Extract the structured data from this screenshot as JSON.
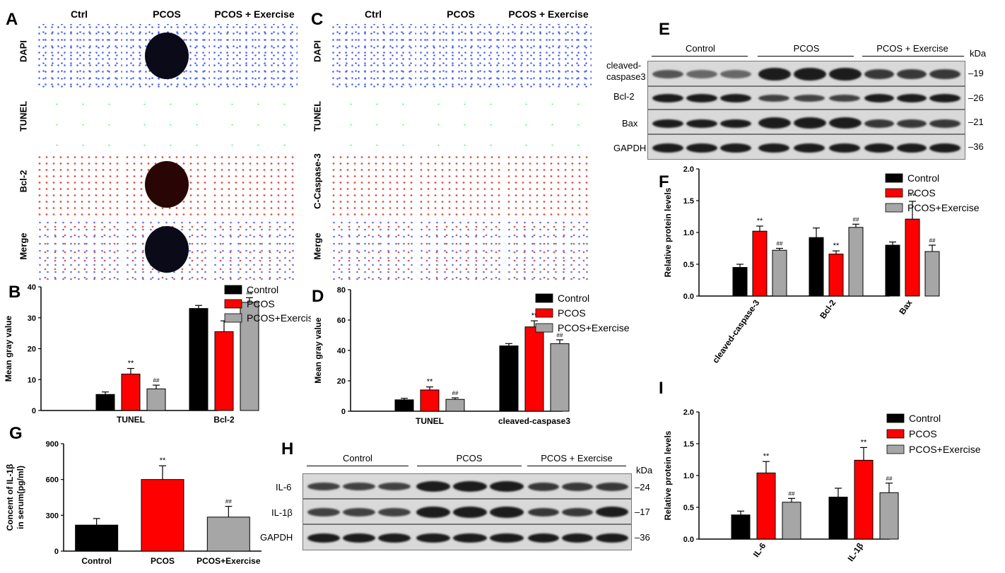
{
  "panels": {
    "A": "A",
    "B": "B",
    "C": "C",
    "D": "D",
    "E": "E",
    "F": "F",
    "G": "G",
    "H": "H",
    "I": "I"
  },
  "panel_A": {
    "columns": [
      "Ctrl",
      "PCOS",
      "PCOS + Exercise"
    ],
    "rows": [
      "DAPI",
      "TUNEL",
      "Bcl-2",
      "Merge"
    ]
  },
  "panel_C": {
    "columns": [
      "Ctrl",
      "PCOS",
      "PCOS + Exercise"
    ],
    "rows": [
      "DAPI",
      "TUNEL",
      "C-Caspase-3",
      "Merge"
    ]
  },
  "panel_E": {
    "groups": [
      "Control",
      "PCOS",
      "PCOS + Exercise"
    ],
    "unit": "kDa",
    "proteins": [
      {
        "name": "cleaved-\ncaspase3",
        "kda": "19"
      },
      {
        "name": "Bcl-2",
        "kda": "26"
      },
      {
        "name": "Bax",
        "kda": "21"
      },
      {
        "name": "GAPDH",
        "kda": "36"
      }
    ]
  },
  "panel_H": {
    "groups": [
      "Control",
      "PCOS",
      "PCOS + Exercise"
    ],
    "unit": "kDa",
    "proteins": [
      {
        "name": "IL-6",
        "kda": "24"
      },
      {
        "name": "IL-1β",
        "kda": "17"
      },
      {
        "name": "GAPDH",
        "kda": "36"
      }
    ]
  },
  "colors": {
    "control": "#000000",
    "pcos": "#ff0000",
    "exercise": "#a6a6a6"
  },
  "chart_data": [
    {
      "id": "B",
      "type": "bar",
      "categories": [
        "TUNEL",
        "Bcl-2"
      ],
      "ylabel": "Mean gray value",
      "ylim": [
        0,
        40
      ],
      "yticks": [
        0,
        10,
        20,
        30,
        40
      ],
      "legend": "top-right",
      "series": [
        {
          "name": "Control",
          "values": [
            5.2,
            33.0
          ],
          "err": [
            0.8,
            1.0
          ],
          "marks": [
            "",
            ""
          ]
        },
        {
          "name": "PCOS",
          "values": [
            11.8,
            25.5
          ],
          "err": [
            1.8,
            3.5
          ],
          "marks": [
            "**",
            ""
          ]
        },
        {
          "name": "PCOS+Exercise",
          "values": [
            7.0,
            35.0
          ],
          "err": [
            1.2,
            1.5
          ],
          "marks": [
            "##",
            "##"
          ]
        }
      ]
    },
    {
      "id": "D",
      "type": "bar",
      "categories": [
        "TUNEL",
        "cleaved-caspase3"
      ],
      "ylabel": "Mean gray value",
      "ylim": [
        0,
        80
      ],
      "yticks": [
        0,
        20,
        40,
        60,
        80
      ],
      "legend": "top-right",
      "series": [
        {
          "name": "Control",
          "values": [
            7.5,
            43.0
          ],
          "err": [
            1.0,
            1.5
          ],
          "marks": [
            "",
            ""
          ]
        },
        {
          "name": "PCOS",
          "values": [
            14.0,
            55.5
          ],
          "err": [
            2.0,
            4.0
          ],
          "marks": [
            "**",
            "**"
          ]
        },
        {
          "name": "PCOS+Exercise",
          "values": [
            7.8,
            44.5
          ],
          "err": [
            1.0,
            2.5
          ],
          "marks": [
            "##",
            "##"
          ]
        }
      ]
    },
    {
      "id": "F",
      "type": "bar",
      "categories": [
        "cleaved-caspase-3",
        "Bcl-2",
        "Bax"
      ],
      "ylabel": "Relative protein levels",
      "ylim": [
        0,
        2.0
      ],
      "yticks": [
        "0.0",
        "0.5",
        "1.0",
        "1.5",
        "2.0"
      ],
      "legend": "top-right",
      "series": [
        {
          "name": "Control",
          "values": [
            0.45,
            0.92,
            0.8
          ],
          "err": [
            0.05,
            0.15,
            0.05
          ],
          "marks": [
            "",
            "",
            ""
          ]
        },
        {
          "name": "PCOS",
          "values": [
            1.02,
            0.66,
            1.21
          ],
          "err": [
            0.08,
            0.05,
            0.28
          ],
          "marks": [
            "**",
            "**",
            "**"
          ]
        },
        {
          "name": "PCOS+Exercise",
          "values": [
            0.72,
            1.08,
            0.7
          ],
          "err": [
            0.03,
            0.05,
            0.1
          ],
          "marks": [
            "##",
            "##",
            "##"
          ]
        }
      ]
    },
    {
      "id": "G",
      "type": "bar",
      "categories": [
        "Control",
        "PCOS",
        "PCOS+Exercise"
      ],
      "ylabel": "Concent of IL-1β\nin serum(pg/ml)",
      "ylim": [
        0,
        900
      ],
      "yticks": [
        0,
        300,
        600,
        900
      ],
      "series": [
        {
          "name": "",
          "values": [
            218,
            600,
            285
          ],
          "err": [
            55,
            115,
            90
          ],
          "marks": [
            "",
            "**",
            "##"
          ]
        }
      ]
    },
    {
      "id": "I",
      "type": "bar",
      "categories": [
        "IL-6",
        "IL-1β"
      ],
      "ylabel": "Relative protein levels",
      "ylim": [
        0,
        2.0
      ],
      "yticks": [
        "0.0",
        "0.5",
        "1.0",
        "1.5",
        "2.0"
      ],
      "legend": "top-right",
      "series": [
        {
          "name": "Control",
          "values": [
            0.38,
            0.66
          ],
          "err": [
            0.06,
            0.14
          ],
          "marks": [
            "",
            ""
          ]
        },
        {
          "name": "PCOS",
          "values": [
            1.04,
            1.24
          ],
          "err": [
            0.18,
            0.2
          ],
          "marks": [
            "**",
            "**"
          ]
        },
        {
          "name": "PCOS+Exercise",
          "values": [
            0.58,
            0.73
          ],
          "err": [
            0.06,
            0.15
          ],
          "marks": [
            "##",
            "##"
          ]
        }
      ]
    }
  ]
}
